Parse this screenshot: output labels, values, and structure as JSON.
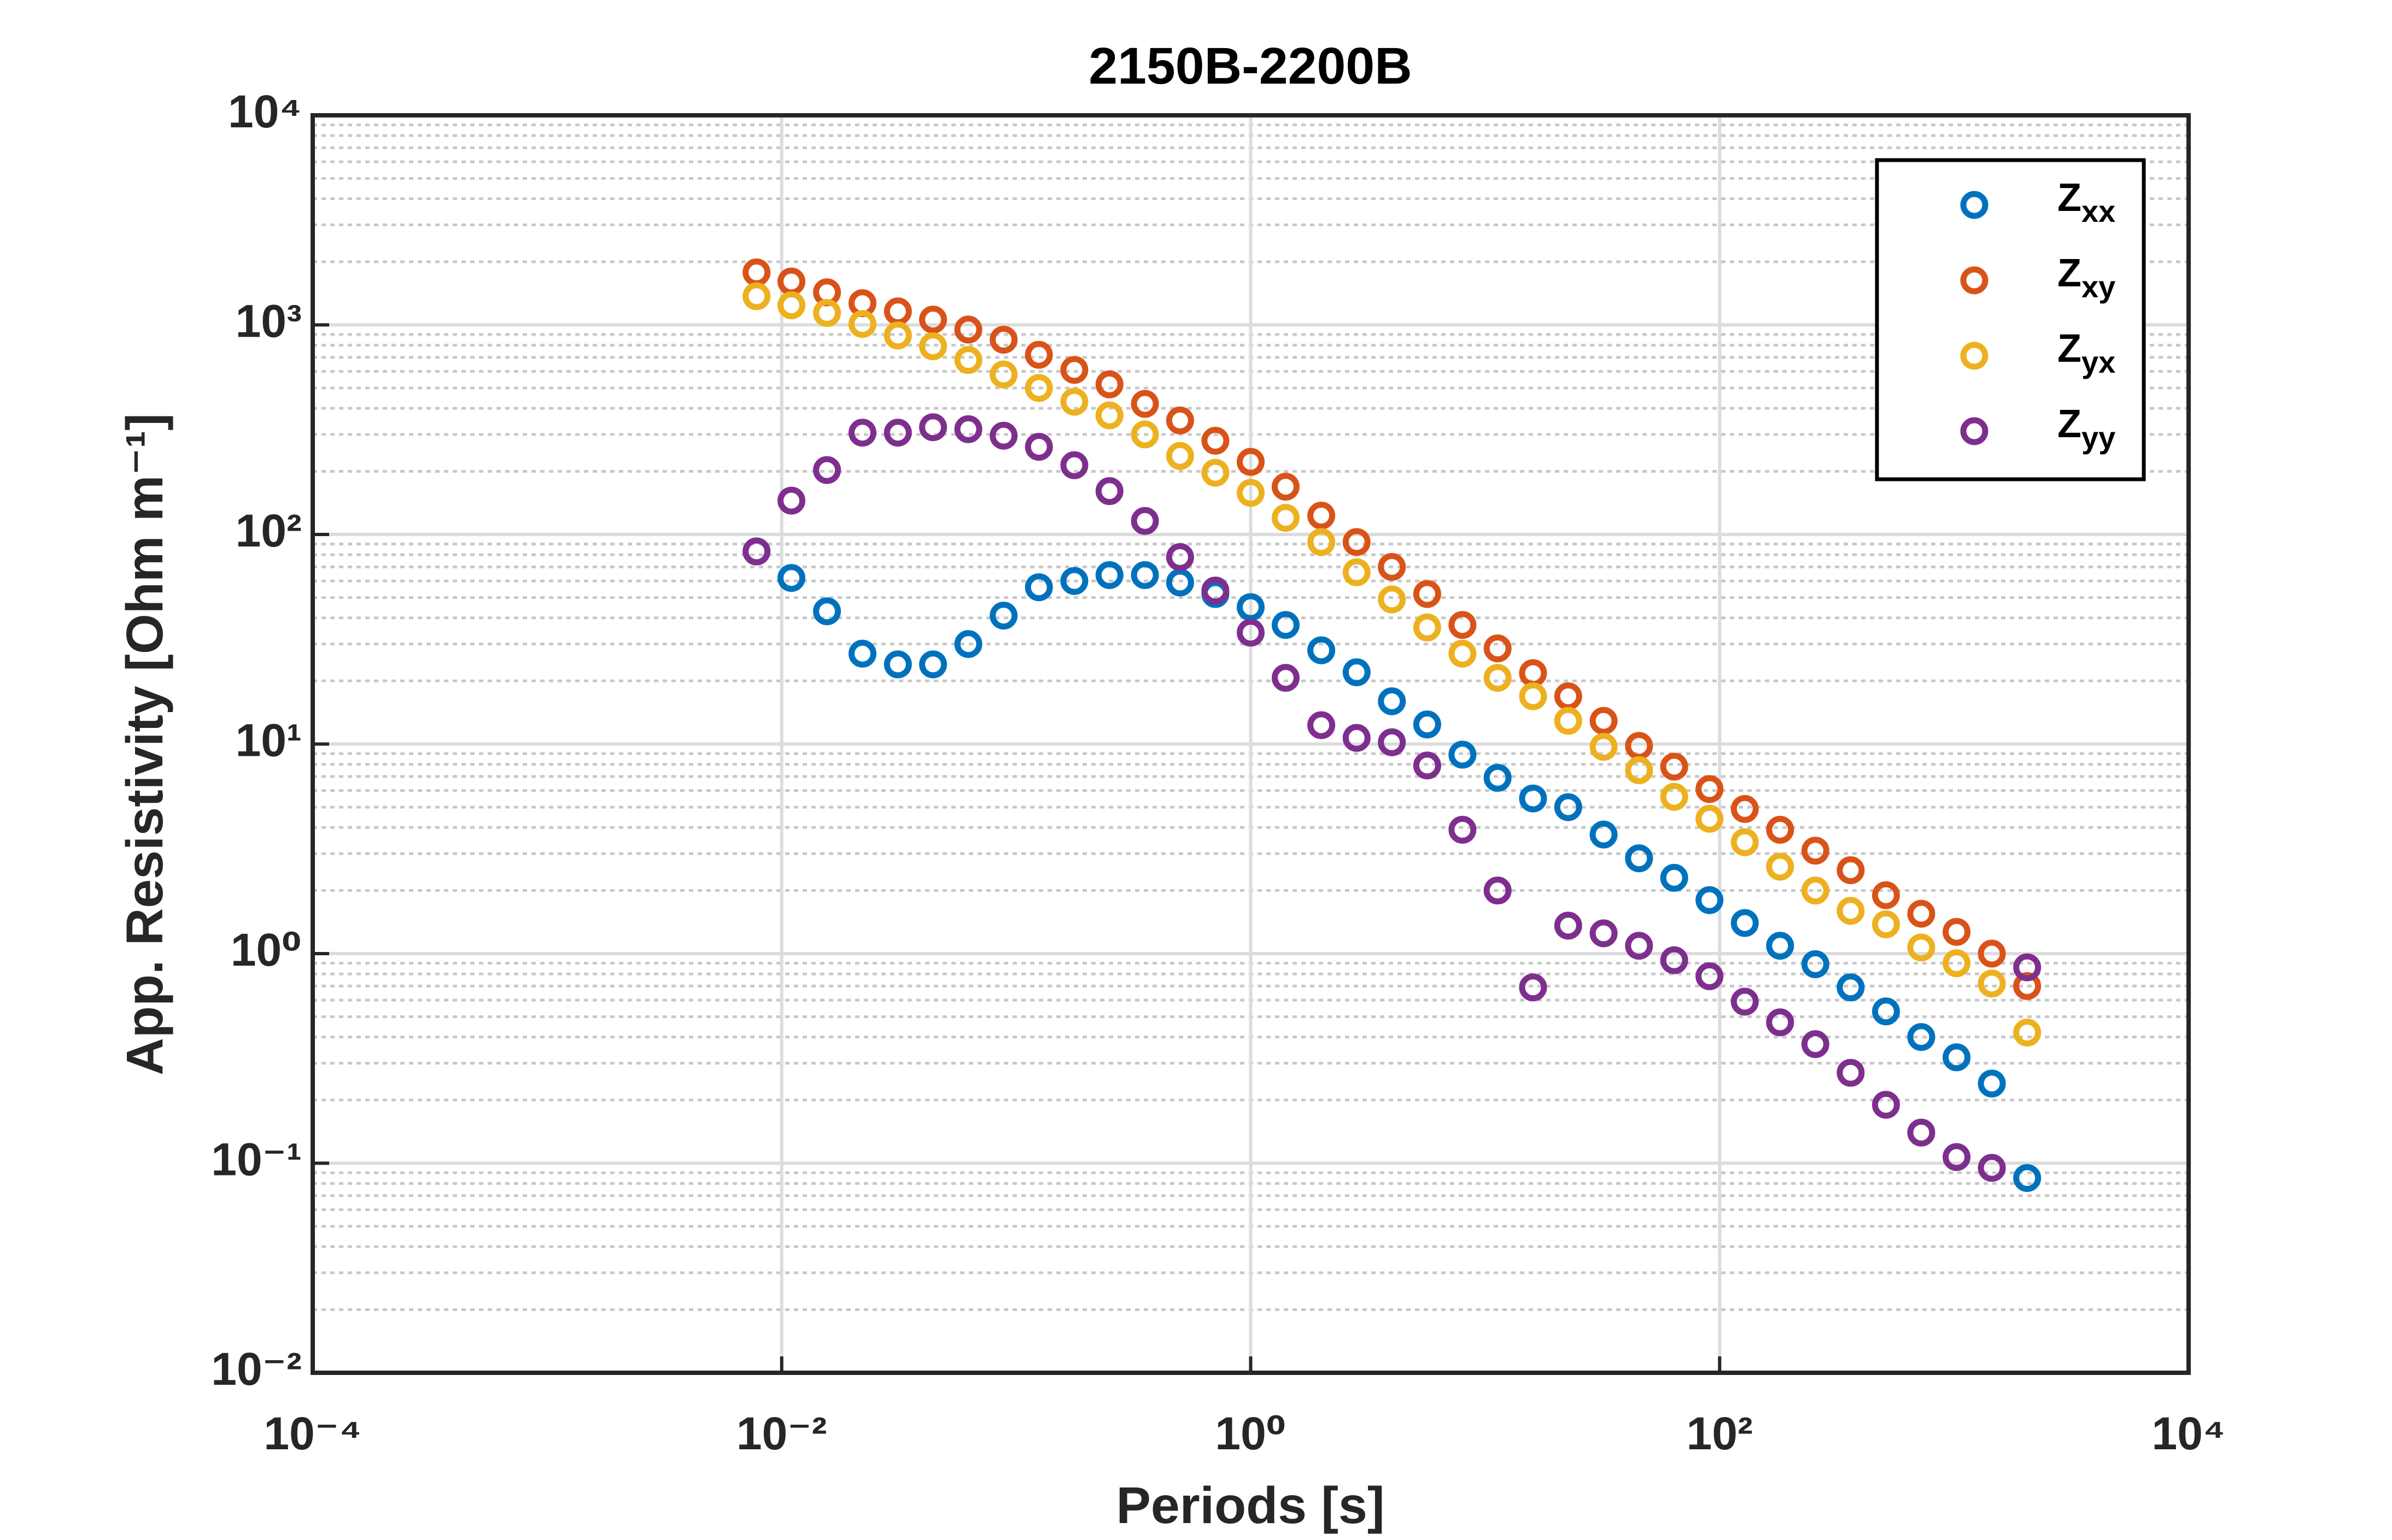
{
  "chart_data": {
    "type": "scatter",
    "title": "2150B-2200B",
    "x_label": "Periods [s]",
    "y_label": "App. Resistivity [Ohm m⁻¹]",
    "x_log": true,
    "y_log": true,
    "grid": true,
    "minor_grid_y": true,
    "legend": "top-right",
    "xlim": [
      0.0001,
      10000
    ],
    "ylim": [
      0.01,
      10000
    ],
    "xticks": [
      {
        "value": 0.0001,
        "label": "10⁻⁴"
      },
      {
        "value": 0.01,
        "label": "10⁻²"
      },
      {
        "value": 1,
        "label": "10⁰"
      },
      {
        "value": 100,
        "label": "10²"
      },
      {
        "value": 10000,
        "label": "10⁴"
      }
    ],
    "yticks": [
      {
        "value": 0.01,
        "label": "10⁻²"
      },
      {
        "value": 0.1,
        "label": "10⁻¹"
      },
      {
        "value": 1,
        "label": "10⁰"
      },
      {
        "value": 10,
        "label": "10¹"
      },
      {
        "value": 100,
        "label": "10²"
      },
      {
        "value": 1000,
        "label": "10³"
      },
      {
        "value": 10000,
        "label": "10⁴"
      }
    ],
    "x": [
      0.00781,
      0.011,
      0.0156,
      0.0221,
      0.0313,
      0.0442,
      0.0625,
      0.0884,
      0.125,
      0.177,
      0.25,
      0.354,
      0.5,
      0.707,
      1,
      1.41,
      2,
      2.83,
      4,
      5.66,
      8,
      11.3,
      16,
      22.6,
      32,
      45.3,
      64,
      90.5,
      128,
      181,
      256,
      362,
      512,
      724,
      1024,
      1448,
      2048
    ],
    "series": [
      {
        "name": "Zxx",
        "color": "#0072BD",
        "values": [
          83,
          62,
          43,
          27,
          24,
          24,
          30,
          41,
          56,
          60,
          64,
          64,
          59,
          52,
          45,
          37,
          28,
          22,
          16,
          12.4,
          8.9,
          6.9,
          5.5,
          5.0,
          3.7,
          2.85,
          2.3,
          1.8,
          1.4,
          1.09,
          0.89,
          0.69,
          0.53,
          0.4,
          0.32,
          0.24,
          0.085
        ]
      },
      {
        "name": "Zxy",
        "color": "#D95319",
        "values": [
          1780,
          1610,
          1430,
          1270,
          1160,
          1060,
          950,
          850,
          720,
          610,
          520,
          420,
          350,
          280,
          222,
          169,
          123,
          92,
          70,
          52,
          37,
          28.6,
          21.8,
          16.9,
          12.9,
          9.8,
          7.8,
          6.1,
          4.9,
          3.9,
          3.1,
          2.5,
          1.9,
          1.55,
          1.27,
          1.0,
          0.7
        ]
      },
      {
        "name": "Zyx",
        "color": "#EDB120",
        "values": [
          1370,
          1240,
          1140,
          1010,
          890,
          790,
          680,
          580,
          500,
          430,
          370,
          300,
          237,
          197,
          158,
          120,
          92,
          66,
          49,
          36,
          27,
          20.7,
          16.9,
          12.9,
          9.7,
          7.5,
          5.6,
          4.4,
          3.4,
          2.6,
          2.0,
          1.6,
          1.38,
          1.07,
          0.9,
          0.72,
          0.42
        ]
      },
      {
        "name": "Zyy",
        "color": "#7E2F8E",
        "values": [
          83,
          145,
          203,
          306,
          306,
          325,
          318,
          296,
          262,
          214,
          161,
          116,
          78,
          54,
          34,
          20.7,
          12.3,
          10.7,
          10.2,
          7.9,
          3.9,
          2.0,
          0.69,
          1.36,
          1.25,
          1.09,
          0.93,
          0.78,
          0.59,
          0.47,
          0.37,
          0.27,
          0.19,
          0.14,
          0.107,
          0.095,
          0.86
        ]
      }
    ]
  }
}
